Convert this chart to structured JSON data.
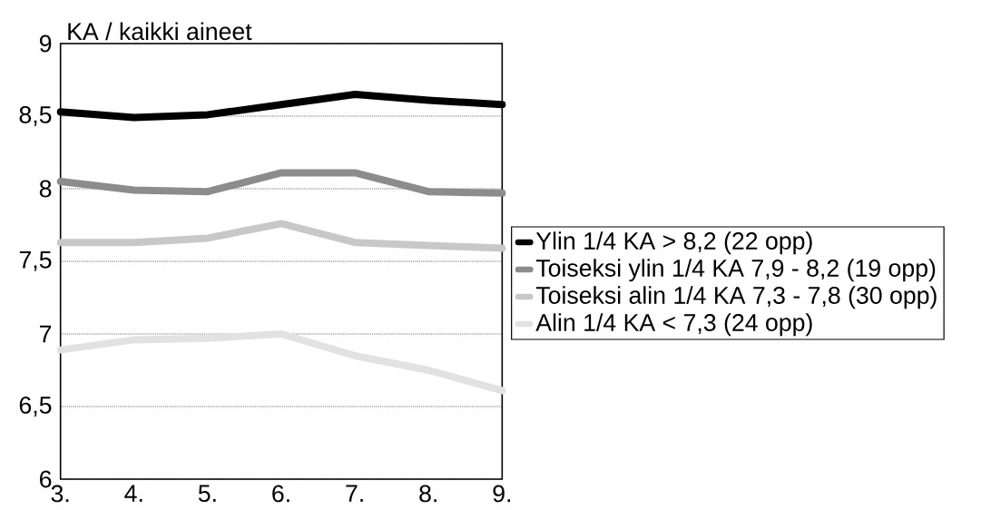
{
  "chart_data": {
    "type": "line",
    "ylabel": "KA / kaikki aineet",
    "categories": [
      "3.",
      "4.",
      "5.",
      "6.",
      "7.",
      "8.",
      "9."
    ],
    "series": [
      {
        "name": "Ylin 1/4 KA > 8,2 (22 opp)",
        "color": "#000000",
        "values": [
          8.53,
          8.49,
          8.51,
          8.58,
          8.65,
          8.61,
          8.58
        ]
      },
      {
        "name": "Toiseksi ylin 1/4 KA 7,9 - 8,2 (19 opp)",
        "color": "#8c8c8c",
        "values": [
          8.05,
          7.99,
          7.98,
          8.11,
          8.11,
          7.98,
          7.97
        ]
      },
      {
        "name": "Toiseksi alin 1/4 KA 7,3 - 7,8 (30 opp)",
        "color": "#c8c8c8",
        "values": [
          7.63,
          7.63,
          7.66,
          7.76,
          7.63,
          7.61,
          7.59
        ]
      },
      {
        "name": "Alin 1/4 KA < 7,3 (24 opp)",
        "color": "#e2e2e2",
        "values": [
          6.89,
          6.96,
          6.97,
          7.0,
          6.85,
          6.75,
          6.61
        ]
      }
    ],
    "ylim": [
      6,
      9
    ],
    "yticks": [
      6,
      {
        "value": 6.5,
        "label": "6,5"
      },
      7,
      {
        "value": 7.5,
        "label": "7,5"
      },
      8,
      {
        "value": 8.5,
        "label": "8,5"
      },
      9
    ],
    "grid": "y",
    "legend": "right",
    "marker": "none",
    "line_style": "solid"
  }
}
